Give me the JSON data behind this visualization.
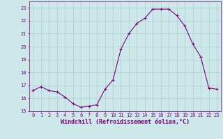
{
  "hours": [
    0,
    1,
    2,
    3,
    4,
    5,
    6,
    7,
    8,
    9,
    10,
    11,
    12,
    13,
    14,
    15,
    16,
    17,
    18,
    19,
    20,
    21,
    22,
    23
  ],
  "values": [
    16.6,
    16.9,
    16.6,
    16.5,
    16.1,
    15.6,
    15.3,
    15.4,
    15.5,
    16.7,
    17.4,
    19.8,
    21.0,
    21.8,
    22.2,
    22.9,
    22.9,
    22.9,
    22.4,
    21.6,
    20.2,
    19.2,
    16.8,
    16.7
  ],
  "line_color": "#800080",
  "marker": "+",
  "marker_size": 3,
  "marker_lw": 0.8,
  "line_width": 0.8,
  "bg_color": "#cce8e8",
  "grid_color": "#aacece",
  "xlabel": "Windchill (Refroidissement éolien,°C)",
  "xlabel_color": "#800080",
  "ylim": [
    15,
    23.5
  ],
  "yticks": [
    15,
    16,
    17,
    18,
    19,
    20,
    21,
    22,
    23
  ],
  "xlim": [
    -0.5,
    23.5
  ],
  "xticks": [
    0,
    1,
    2,
    3,
    4,
    5,
    6,
    7,
    8,
    9,
    10,
    11,
    12,
    13,
    14,
    15,
    16,
    17,
    18,
    19,
    20,
    21,
    22,
    23
  ],
  "tick_color": "#800080",
  "tick_fontsize": 5.0,
  "xlabel_fontsize": 6.0,
  "spine_color": "#800080"
}
